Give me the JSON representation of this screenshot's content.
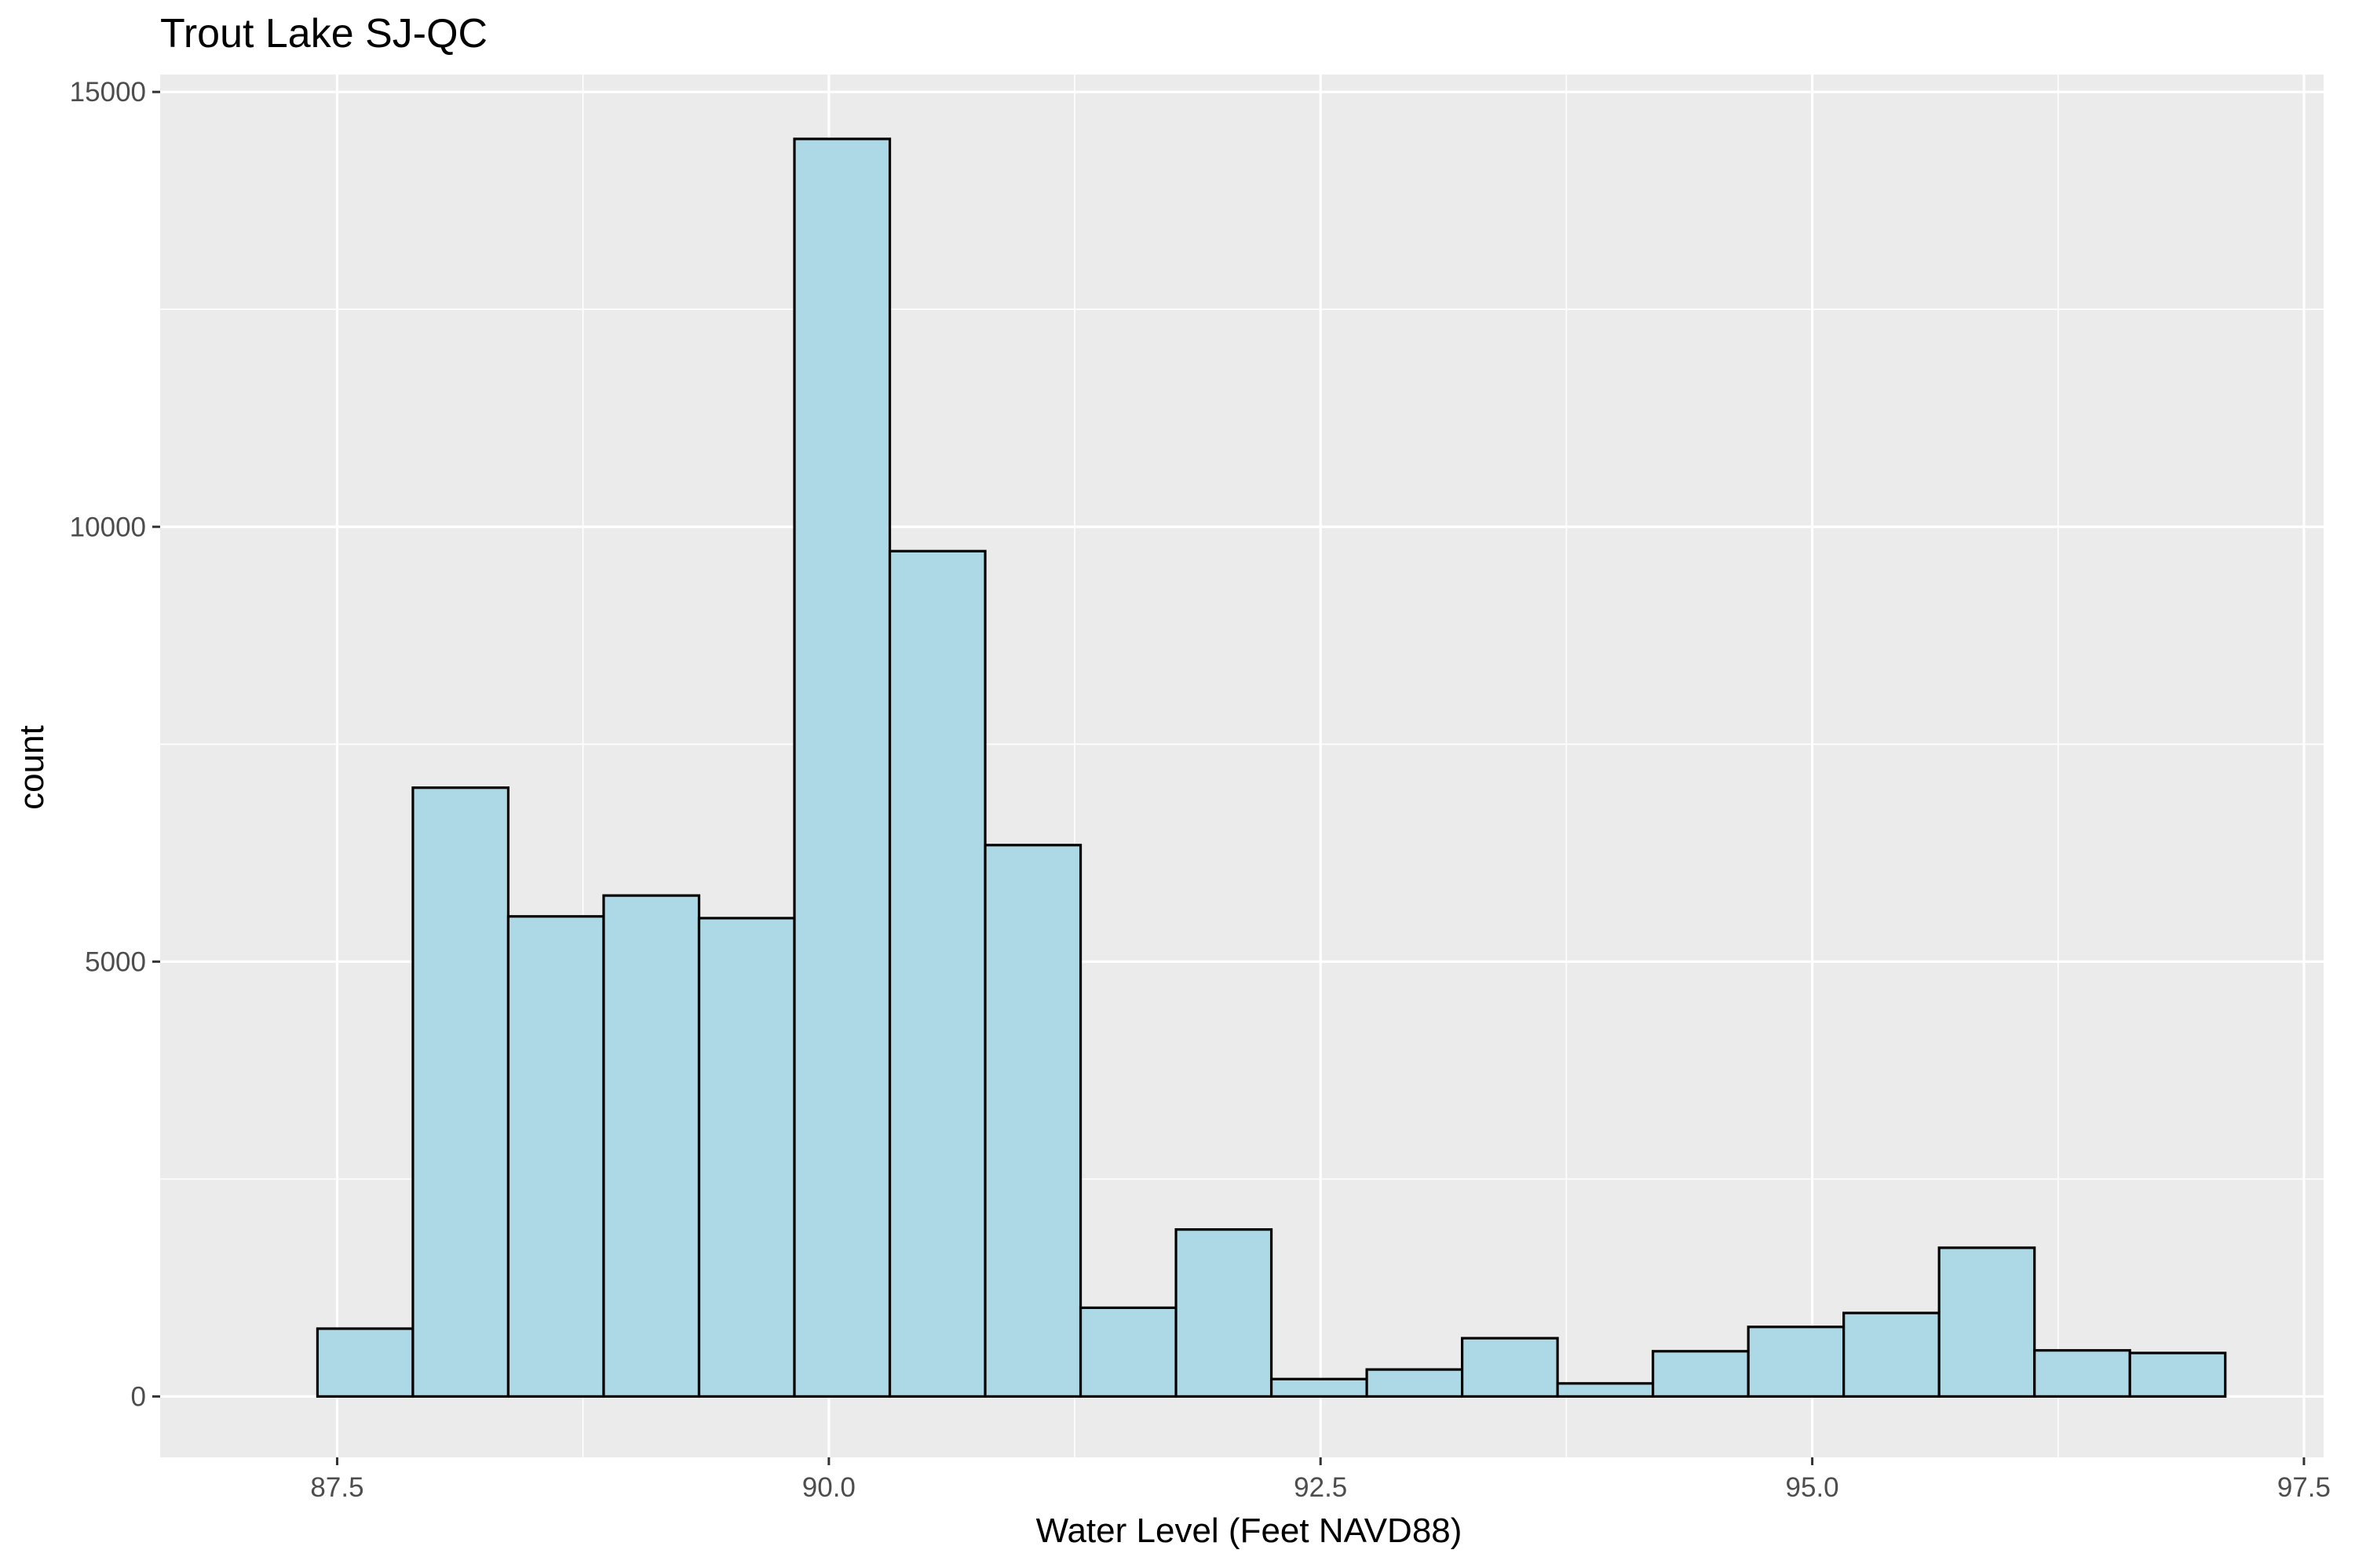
{
  "chart_data": {
    "type": "bar",
    "title": "Trout Lake SJ-QC",
    "xlabel": "Water Level (Feet NAVD88)",
    "ylabel": "count",
    "xlim": [
      86.6,
      97.6
    ],
    "ylim": [
      -700,
      15200
    ],
    "x_ticks": [
      87.5,
      90.0,
      92.5,
      95.0,
      97.5
    ],
    "x_tick_labels": [
      "87.5",
      "90.0",
      "92.5",
      "95.0",
      "97.5"
    ],
    "y_ticks": [
      0,
      5000,
      10000,
      15000
    ],
    "y_tick_labels": [
      "0",
      "5000",
      "10000",
      "15000"
    ],
    "grid": true,
    "legend": "none",
    "colors": {
      "panel": "#ebebeb",
      "grid": "#ffffff",
      "bar_fill": "#add8e6",
      "bar_stroke": "#000000"
    },
    "bin_edges": [
      87.4,
      87.885,
      88.37,
      88.855,
      89.34,
      89.825,
      90.31,
      90.795,
      91.28,
      91.765,
      92.25,
      92.735,
      93.22,
      93.705,
      94.19,
      94.675,
      95.16,
      95.645,
      96.13,
      96.615,
      97.1
    ],
    "values": [
      780,
      7000,
      5520,
      5760,
      5500,
      14460,
      9720,
      6340,
      1020,
      1920,
      200,
      310,
      670,
      150,
      520,
      800,
      960,
      1710,
      530,
      500
    ]
  }
}
